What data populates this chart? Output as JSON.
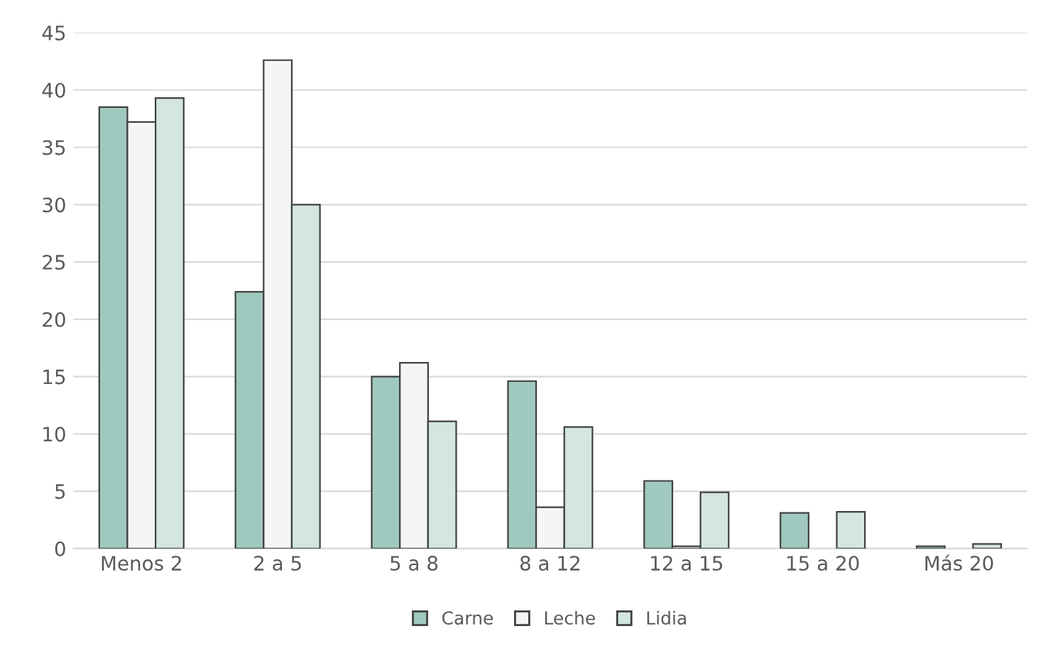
{
  "chart_data": {
    "type": "bar",
    "categories": [
      "Menos 2",
      "2 a 5",
      "5 a 8",
      "8 a 12",
      "12 a 15",
      "15 a 20",
      "Más 20"
    ],
    "series": [
      {
        "name": "Carne",
        "color": "#9fc9bf",
        "values": [
          38.5,
          22.4,
          15.0,
          14.6,
          5.9,
          3.1,
          0.2
        ]
      },
      {
        "name": "Leche",
        "color": "#f3f6f4",
        "values": [
          37.2,
          42.6,
          16.2,
          3.6,
          0.2,
          null,
          null
        ]
      },
      {
        "name": "Lidia",
        "color": "#d3e6e1",
        "values": [
          39.3,
          30.0,
          11.1,
          10.6,
          4.9,
          3.2,
          0.4
        ]
      }
    ],
    "ylim": [
      0,
      45
    ],
    "yticks": [
      0,
      5,
      10,
      15,
      20,
      25,
      30,
      35,
      40,
      45
    ],
    "grid": "y",
    "legend": "bottom"
  }
}
